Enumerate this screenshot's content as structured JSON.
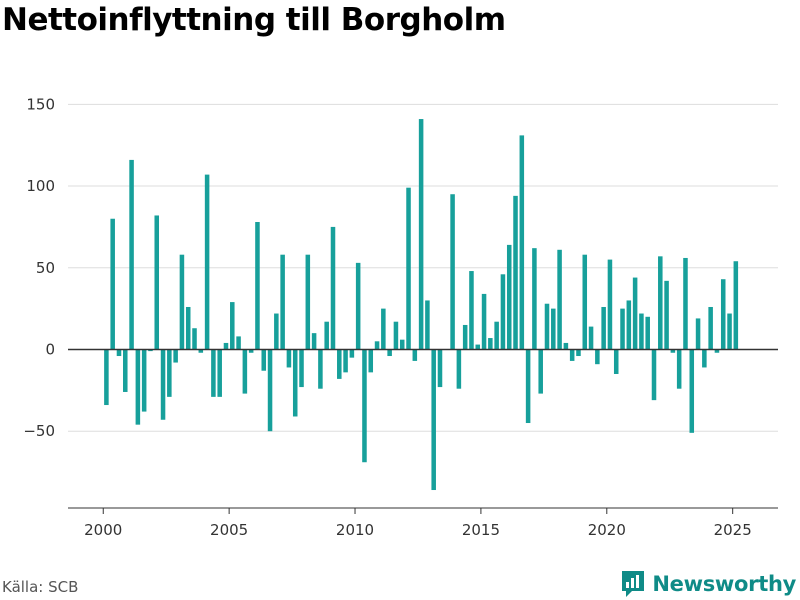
{
  "title": "Nettoinflyttning till Borgholm",
  "source": "Källa: SCB",
  "brand": "Newsworthy",
  "colors": {
    "bar": "#17a09b",
    "brand": "#0f8b87",
    "grid": "#dddddd",
    "axis": "#333333"
  },
  "chart_data": {
    "type": "bar",
    "title": "Nettoinflyttning till Borgholm",
    "xlabel": "",
    "ylabel": "",
    "ylim": [
      -97,
      160
    ],
    "xlim": [
      1998.6,
      2026.8
    ],
    "yticks": [
      150,
      100,
      50,
      0,
      -50
    ],
    "xticks": [
      2000,
      2005,
      2010,
      2015,
      2020,
      2025
    ],
    "grid": true,
    "x_start": 2000.125,
    "x_step": 0.25,
    "values": [
      -34,
      80,
      -4,
      -26,
      116,
      -46,
      -38,
      -1,
      82,
      -43,
      -29,
      -8,
      58,
      26,
      13,
      -2,
      107,
      -29,
      -29,
      4,
      29,
      8,
      -27,
      -2,
      78,
      -13,
      -50,
      22,
      58,
      -11,
      -41,
      -23,
      58,
      10,
      -24,
      17,
      75,
      -18,
      -14,
      -5,
      53,
      -69,
      -14,
      5,
      25,
      -4,
      17,
      6,
      99,
      -7,
      141,
      30,
      -86,
      -23,
      0,
      95,
      -24,
      15,
      48,
      3,
      34,
      7,
      17,
      46,
      64,
      94,
      131,
      -45,
      62,
      -27,
      28,
      25,
      61,
      4,
      -7,
      -4,
      58,
      14,
      -9,
      26,
      55,
      -15,
      25,
      30,
      44,
      22,
      20,
      -31,
      57,
      42,
      -2,
      -24,
      56,
      -51,
      19,
      -11,
      26,
      -2,
      43,
      22,
      54
    ]
  }
}
